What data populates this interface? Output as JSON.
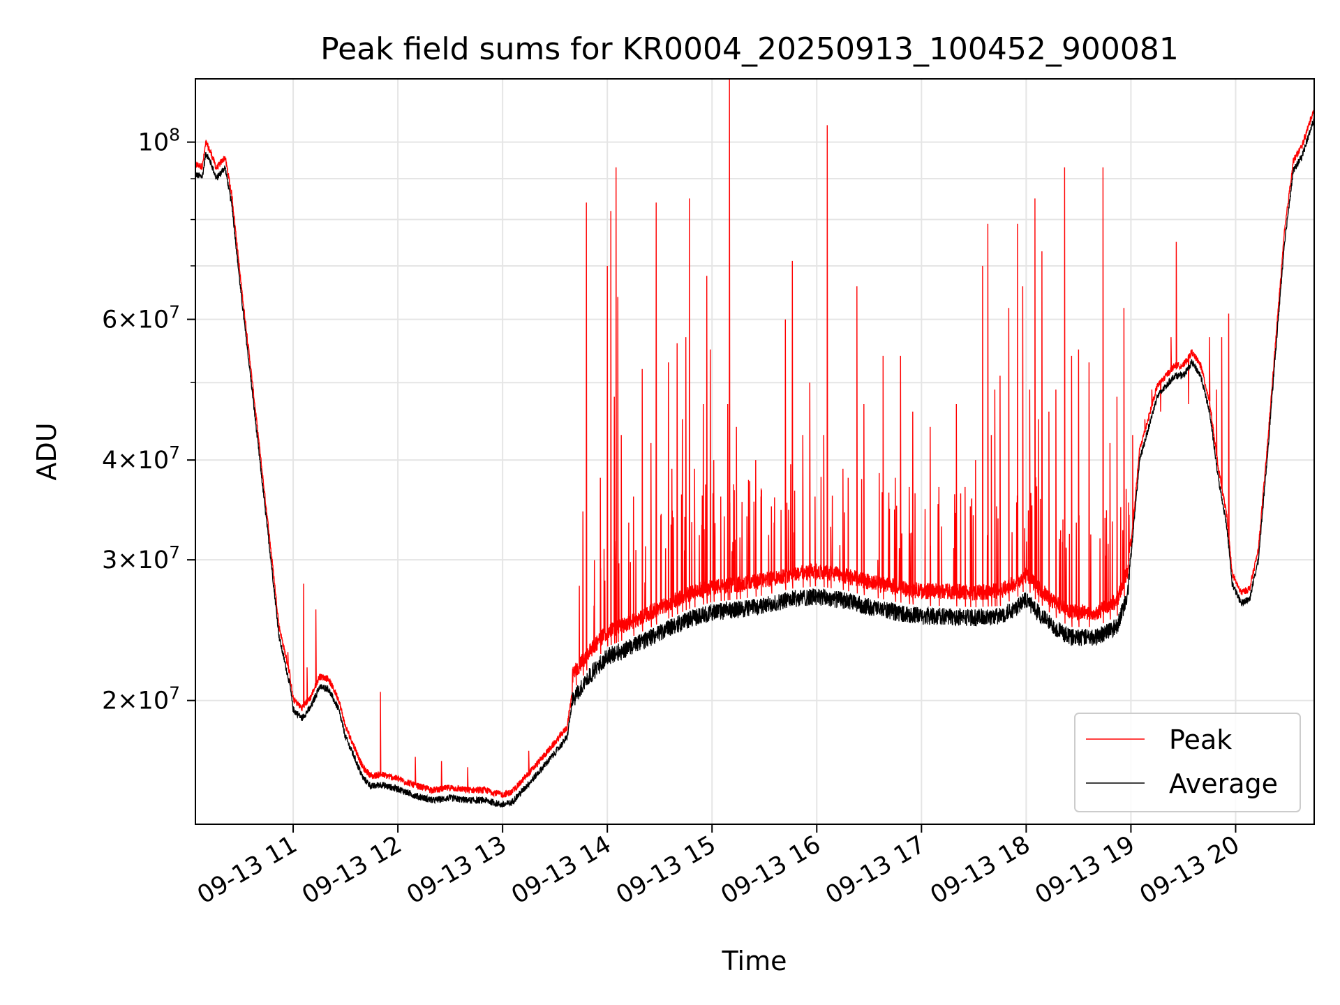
{
  "chart_data": {
    "type": "line",
    "title": "Peak field sums for KR0004_20250913_100452_900081",
    "xlabel": "Time",
    "ylabel": "ADU",
    "yscale": "log",
    "ylim": [
      14000000,
      120000000
    ],
    "xlim": [
      "09-13 10:04",
      "09-13 20:45"
    ],
    "grid": true,
    "legend_position": "lower right",
    "xticks": [
      {
        "label": "09-13 11",
        "hour": 11
      },
      {
        "label": "09-13 12",
        "hour": 12
      },
      {
        "label": "09-13 13",
        "hour": 13
      },
      {
        "label": "09-13 14",
        "hour": 14
      },
      {
        "label": "09-13 15",
        "hour": 15
      },
      {
        "label": "09-13 16",
        "hour": 16
      },
      {
        "label": "09-13 17",
        "hour": 17
      },
      {
        "label": "09-13 18",
        "hour": 18
      },
      {
        "label": "09-13 19",
        "hour": 19
      },
      {
        "label": "09-13 20",
        "hour": 20
      }
    ],
    "yticks": [
      {
        "value": 20000000,
        "mantissa": "2",
        "exp": "7"
      },
      {
        "value": 30000000,
        "mantissa": "3",
        "exp": "7"
      },
      {
        "value": 40000000,
        "mantissa": "4",
        "exp": "7"
      },
      {
        "value": 60000000,
        "mantissa": "6",
        "exp": "7"
      },
      {
        "value": 100000000,
        "mantissa": "",
        "exp": "8"
      }
    ],
    "yminor_ticks": [
      50000000,
      70000000,
      80000000,
      90000000
    ],
    "colors": {
      "peak": "#ff0000",
      "average": "#000000"
    },
    "series": [
      {
        "name": "Average",
        "color": "#000000",
        "baseline": [
          [
            "10:04",
            91000000
          ],
          [
            "10:08",
            90500000
          ],
          [
            "10:10",
            97000000
          ],
          [
            "10:13",
            94000000
          ],
          [
            "10:16",
            90000000
          ],
          [
            "10:21",
            93000000
          ],
          [
            "10:25",
            83000000
          ],
          [
            "10:30",
            65000000
          ],
          [
            "10:36",
            50000000
          ],
          [
            "10:42",
            38000000
          ],
          [
            "10:48",
            29000000
          ],
          [
            "10:52",
            24000000
          ],
          [
            "10:58",
            21000000
          ],
          [
            "11:00",
            19500000
          ],
          [
            "11:05",
            19000000
          ],
          [
            "11:10",
            19600000
          ],
          [
            "11:15",
            20800000
          ],
          [
            "11:20",
            20700000
          ],
          [
            "11:26",
            19500000
          ],
          [
            "11:30",
            18000000
          ],
          [
            "11:35",
            17000000
          ],
          [
            "11:40",
            16000000
          ],
          [
            "11:45",
            15600000
          ],
          [
            "11:50",
            15700000
          ],
          [
            "12:00",
            15500000
          ],
          [
            "12:10",
            15200000
          ],
          [
            "12:20",
            15000000
          ],
          [
            "12:30",
            15100000
          ],
          [
            "12:40",
            15000000
          ],
          [
            "12:50",
            15000000
          ],
          [
            "13:00",
            14800000
          ],
          [
            "13:05",
            14900000
          ],
          [
            "13:10",
            15300000
          ],
          [
            "13:20",
            16200000
          ],
          [
            "13:30",
            17200000
          ],
          [
            "13:37",
            18000000
          ],
          [
            "13:40",
            20000000
          ],
          [
            "13:50",
            21500000
          ],
          [
            "14:00",
            22700000
          ],
          [
            "14:15",
            23400000
          ],
          [
            "14:30",
            24300000
          ],
          [
            "14:45",
            25200000
          ],
          [
            "15:00",
            25800000
          ],
          [
            "15:15",
            26000000
          ],
          [
            "15:30",
            26300000
          ],
          [
            "15:45",
            26800000
          ],
          [
            "16:00",
            27000000
          ],
          [
            "16:15",
            26700000
          ],
          [
            "16:30",
            26200000
          ],
          [
            "16:45",
            25800000
          ],
          [
            "17:00",
            25500000
          ],
          [
            "17:15",
            25500000
          ],
          [
            "17:30",
            25400000
          ],
          [
            "17:45",
            25500000
          ],
          [
            "17:55",
            26200000
          ],
          [
            "18:00",
            26800000
          ],
          [
            "18:05",
            26000000
          ],
          [
            "18:15",
            24800000
          ],
          [
            "18:25",
            24000000
          ],
          [
            "18:40",
            24000000
          ],
          [
            "18:52",
            24800000
          ],
          [
            "18:58",
            27000000
          ],
          [
            "19:05",
            40000000
          ],
          [
            "19:15",
            48000000
          ],
          [
            "19:25",
            51000000
          ],
          [
            "19:30",
            51000000
          ],
          [
            "19:35",
            53000000
          ],
          [
            "19:40",
            51000000
          ],
          [
            "19:45",
            46000000
          ],
          [
            "19:50",
            38000000
          ],
          [
            "19:55",
            33000000
          ],
          [
            "19:58",
            28000000
          ],
          [
            "20:03",
            26500000
          ],
          [
            "20:08",
            26800000
          ],
          [
            "20:13",
            30000000
          ],
          [
            "20:18",
            40000000
          ],
          [
            "20:23",
            55000000
          ],
          [
            "20:28",
            75000000
          ],
          [
            "20:33",
            92000000
          ],
          [
            "20:38",
            96000000
          ],
          [
            "20:45",
            107000000
          ]
        ]
      },
      {
        "name": "Peak",
        "color": "#ff0000",
        "spikes": [
          [
            "10:57",
            23000000
          ],
          [
            "11:06",
            28000000
          ],
          [
            "11:08",
            22000000
          ],
          [
            "11:13",
            26000000
          ],
          [
            "11:50",
            20500000
          ],
          [
            "12:10",
            17000000
          ],
          [
            "12:25",
            16800000
          ],
          [
            "12:40",
            16500000
          ],
          [
            "13:15",
            17300000
          ],
          [
            "13:42",
            22000000
          ],
          [
            "13:46",
            34500000
          ],
          [
            "13:48",
            84000000
          ],
          [
            "13:56",
            38000000
          ],
          [
            "14:00",
            70000000
          ],
          [
            "14:02",
            82000000
          ],
          [
            "14:04",
            48000000
          ],
          [
            "14:05",
            93000000
          ],
          [
            "14:06",
            64000000
          ],
          [
            "14:08",
            43000000
          ],
          [
            "14:15",
            36000000
          ],
          [
            "14:20",
            52000000
          ],
          [
            "14:25",
            42000000
          ],
          [
            "14:28",
            84000000
          ],
          [
            "14:35",
            53000000
          ],
          [
            "14:37",
            39000000
          ],
          [
            "14:40",
            56000000
          ],
          [
            "14:43",
            45000000
          ],
          [
            "14:45",
            57000000
          ],
          [
            "14:47",
            85000000
          ],
          [
            "14:50",
            39000000
          ],
          [
            "14:55",
            47000000
          ],
          [
            "14:57",
            68000000
          ],
          [
            "14:59",
            55000000
          ],
          [
            "15:01",
            40000000
          ],
          [
            "15:05",
            36000000
          ],
          [
            "15:07",
            34000000
          ],
          [
            "15:09",
            47000000
          ],
          [
            "15:10",
            123000000
          ],
          [
            "15:14",
            44000000
          ],
          [
            "15:16",
            32000000
          ],
          [
            "15:20",
            34000000
          ],
          [
            "15:25",
            40000000
          ],
          [
            "15:28",
            36000000
          ],
          [
            "15:34",
            35000000
          ],
          [
            "15:42",
            60000000
          ],
          [
            "15:46",
            71000000
          ],
          [
            "15:52",
            43000000
          ],
          [
            "15:56",
            50000000
          ],
          [
            "15:59",
            36000000
          ],
          [
            "16:04",
            43000000
          ],
          [
            "16:06",
            105000000
          ],
          [
            "16:08",
            33000000
          ],
          [
            "16:15",
            39000000
          ],
          [
            "16:18",
            38000000
          ],
          [
            "16:23",
            66000000
          ],
          [
            "16:27",
            47000000
          ],
          [
            "16:35",
            30000000
          ],
          [
            "16:38",
            54000000
          ],
          [
            "16:45",
            38000000
          ],
          [
            "16:48",
            54000000
          ],
          [
            "16:53",
            37000000
          ],
          [
            "16:55",
            46000000
          ],
          [
            "17:05",
            44000000
          ],
          [
            "17:10",
            37000000
          ],
          [
            "17:20",
            47000000
          ],
          [
            "17:25",
            37000000
          ],
          [
            "17:28",
            35000000
          ],
          [
            "17:31",
            40000000
          ],
          [
            "17:35",
            70000000
          ],
          [
            "17:38",
            79000000
          ],
          [
            "17:40",
            43000000
          ],
          [
            "17:42",
            49000000
          ],
          [
            "17:43",
            35000000
          ],
          [
            "17:45",
            51000000
          ],
          [
            "17:50",
            62000000
          ],
          [
            "17:55",
            79000000
          ],
          [
            "17:58",
            66000000
          ],
          [
            "18:02",
            49000000
          ],
          [
            "18:05",
            85000000
          ],
          [
            "18:07",
            45000000
          ],
          [
            "18:09",
            73000000
          ],
          [
            "18:13",
            46000000
          ],
          [
            "18:17",
            49000000
          ],
          [
            "18:22",
            93000000
          ],
          [
            "18:26",
            54000000
          ],
          [
            "18:30",
            55000000
          ],
          [
            "18:36",
            53000000
          ],
          [
            "18:44",
            93000000
          ],
          [
            "18:48",
            42000000
          ],
          [
            "18:52",
            48000000
          ],
          [
            "18:56",
            62000000
          ],
          [
            "19:01",
            43000000
          ],
          [
            "19:08",
            45000000
          ],
          [
            "19:12",
            49000000
          ],
          [
            "19:17",
            46000000
          ],
          [
            "19:23",
            57000000
          ],
          [
            "19:26",
            75000000
          ],
          [
            "19:33",
            47000000
          ],
          [
            "19:40",
            53000000
          ],
          [
            "19:45",
            57000000
          ],
          [
            "19:49",
            49000000
          ],
          [
            "19:52",
            57000000
          ],
          [
            "19:56",
            61000000
          ]
        ]
      }
    ]
  }
}
